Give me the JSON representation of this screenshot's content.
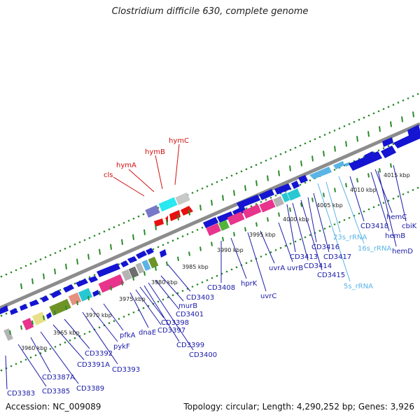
{
  "title": "Clostridium difficile 630, complete genome",
  "accession": "Accession: NC_009089",
  "summary": "Topology: circular; Length: 4,290,252 bp; Genes: 3,926",
  "scale_labels": [
    "3960 kbp",
    "3965 kbp",
    "3970 kbp",
    "3975 kbp",
    "3980 kbp",
    "3985 kbp",
    "3990 kbp",
    "3995 kbp",
    "4000 kbp",
    "4005 kbp",
    "4010 kbp",
    "4015 kbp"
  ],
  "gene_labels": {
    "cls": "cls",
    "hymA": "hymA",
    "hymB": "hymB",
    "hymC": "hymC",
    "CD3383": "CD3383",
    "CD3385": "CD3385",
    "CD3387A": "CD3387A",
    "CD3389": "CD3389",
    "CD3391A": "CD3391A",
    "CD3392": "CD3392",
    "CD3393": "CD3393",
    "pykF": "pykF",
    "pfkA": "pfkA",
    "dnaE": "dnaE",
    "CD3397": "CD3397",
    "CD3398": "CD3398",
    "CD3399": "CD3399",
    "CD3400": "CD3400",
    "CD3401": "CD3401",
    "murB": "murB",
    "CD3403": "CD3403",
    "CD3408": "CD3408",
    "hprK": "hprK",
    "uvrC": "uvrC",
    "uvrA": "uvrA",
    "uvrB": "uvrB",
    "CD3413": "CD3413",
    "CD3414": "CD3414",
    "CD3415": "CD3415",
    "CD3416": "CD3416",
    "CD3417": "CD3417",
    "23s_rRNA": "23s_rRNA",
    "16s_rRNA": "16s_rRNA",
    "5s_rRNA": "5s_rRNA",
    "CD3418": "CD3418",
    "hemB": "hemB",
    "hemC": "hemC",
    "hemD": "hemD",
    "cbiK": "cbiK"
  },
  "colors": {
    "backbone": "#8c8c8c",
    "gene_default": "#1414d2",
    "gene_label": "#1a1aa8",
    "rRNA": "#5ab4e6",
    "red_gene": "#e81010",
    "red_label": "#d01010",
    "tick_green": "#2a8a2a",
    "magenta": "#e8348c",
    "cyan": "#28c8d2",
    "olive": "#6e9428",
    "khaki": "#e8e088",
    "salmon": "#e69080",
    "violet": "#7878c8",
    "grey": "#b4b4b4"
  }
}
